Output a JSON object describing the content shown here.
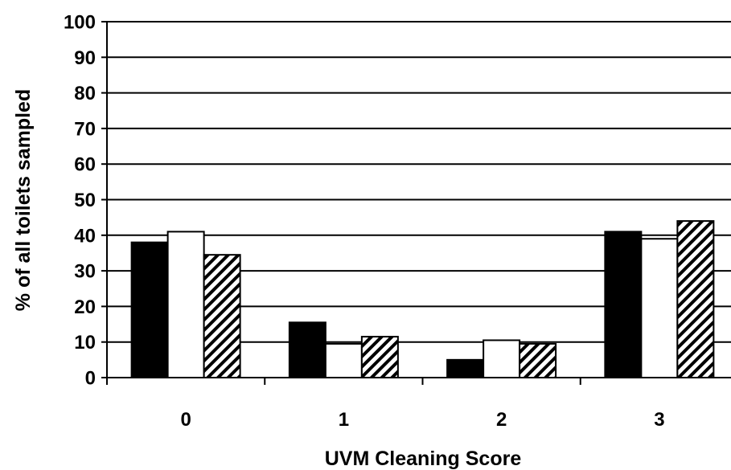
{
  "chart_data": {
    "type": "bar",
    "xlabel": "UVM Cleaning Score",
    "ylabel": "% of all toilets sampled",
    "categories": [
      "0",
      "1",
      "2",
      "3"
    ],
    "ylim": [
      0,
      100
    ],
    "yticks": [
      0,
      10,
      20,
      30,
      40,
      50,
      60,
      70,
      80,
      90,
      100
    ],
    "grid": true,
    "legend": "none",
    "series": [
      {
        "values": [
          38,
          15.5,
          5,
          41
        ],
        "fill": "#000000",
        "pattern": "solid"
      },
      {
        "values": [
          41,
          9.5,
          10.5,
          39
        ],
        "fill": "#ffffff",
        "pattern": "solid"
      },
      {
        "values": [
          34.5,
          11.5,
          9.5,
          44
        ],
        "fill": "#ffffff",
        "pattern": "diagonal-hatch"
      }
    ]
  }
}
